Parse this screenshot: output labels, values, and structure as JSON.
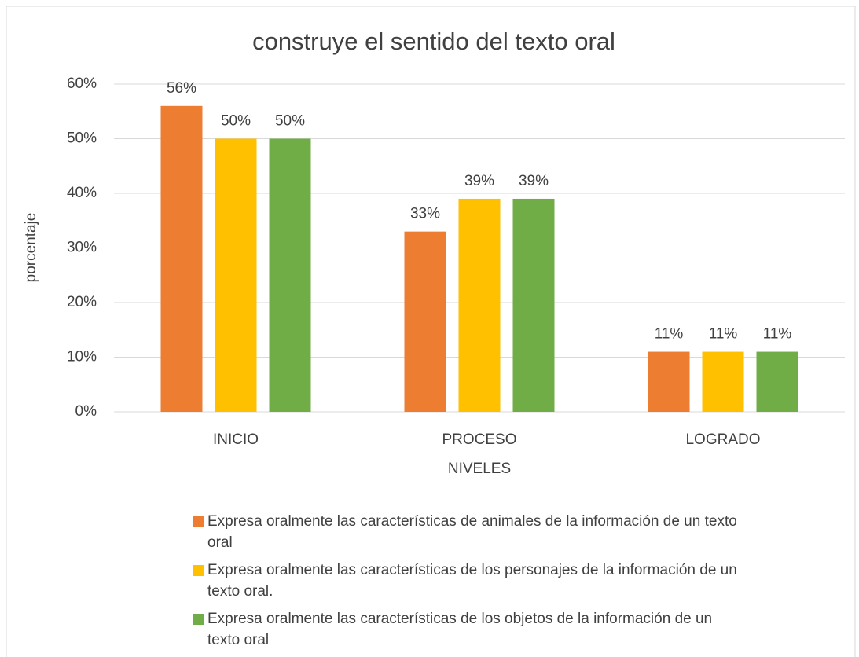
{
  "chart_data": {
    "type": "bar",
    "title": "construye el sentido del texto oral",
    "y_label": "porcentaje",
    "x_label": "NIVELES",
    "categories": [
      "INICIO",
      "PROCESO",
      "LOGRADO"
    ],
    "series": [
      {
        "name": "Expresa oralmente las características de animales de la información de un texto oral",
        "color": "#ED7D31",
        "values": [
          56,
          33,
          11
        ],
        "value_labels": [
          "56%",
          "33%",
          "11%"
        ]
      },
      {
        "name": "Expresa oralmente las características de los personajes de la información de un texto oral.",
        "color": "#FFC000",
        "values": [
          50,
          39,
          11
        ],
        "value_labels": [
          "50%",
          "39%",
          "11%"
        ]
      },
      {
        "name": "Expresa oralmente las características de los objetos de la información de un texto oral",
        "color": "#70AD47",
        "values": [
          50,
          39,
          11
        ],
        "value_labels": [
          "50%",
          "39%",
          "11%"
        ]
      }
    ],
    "ylim": [
      0,
      60
    ],
    "yticks": [
      {
        "value": 0,
        "label": "0%"
      },
      {
        "value": 10,
        "label": "10%"
      },
      {
        "value": 20,
        "label": "20%"
      },
      {
        "value": 30,
        "label": "30%"
      },
      {
        "value": 40,
        "label": "40%"
      },
      {
        "value": 50,
        "label": "50%"
      },
      {
        "value": 60,
        "label": "60%"
      }
    ],
    "grid": true,
    "legend": "bottom"
  }
}
